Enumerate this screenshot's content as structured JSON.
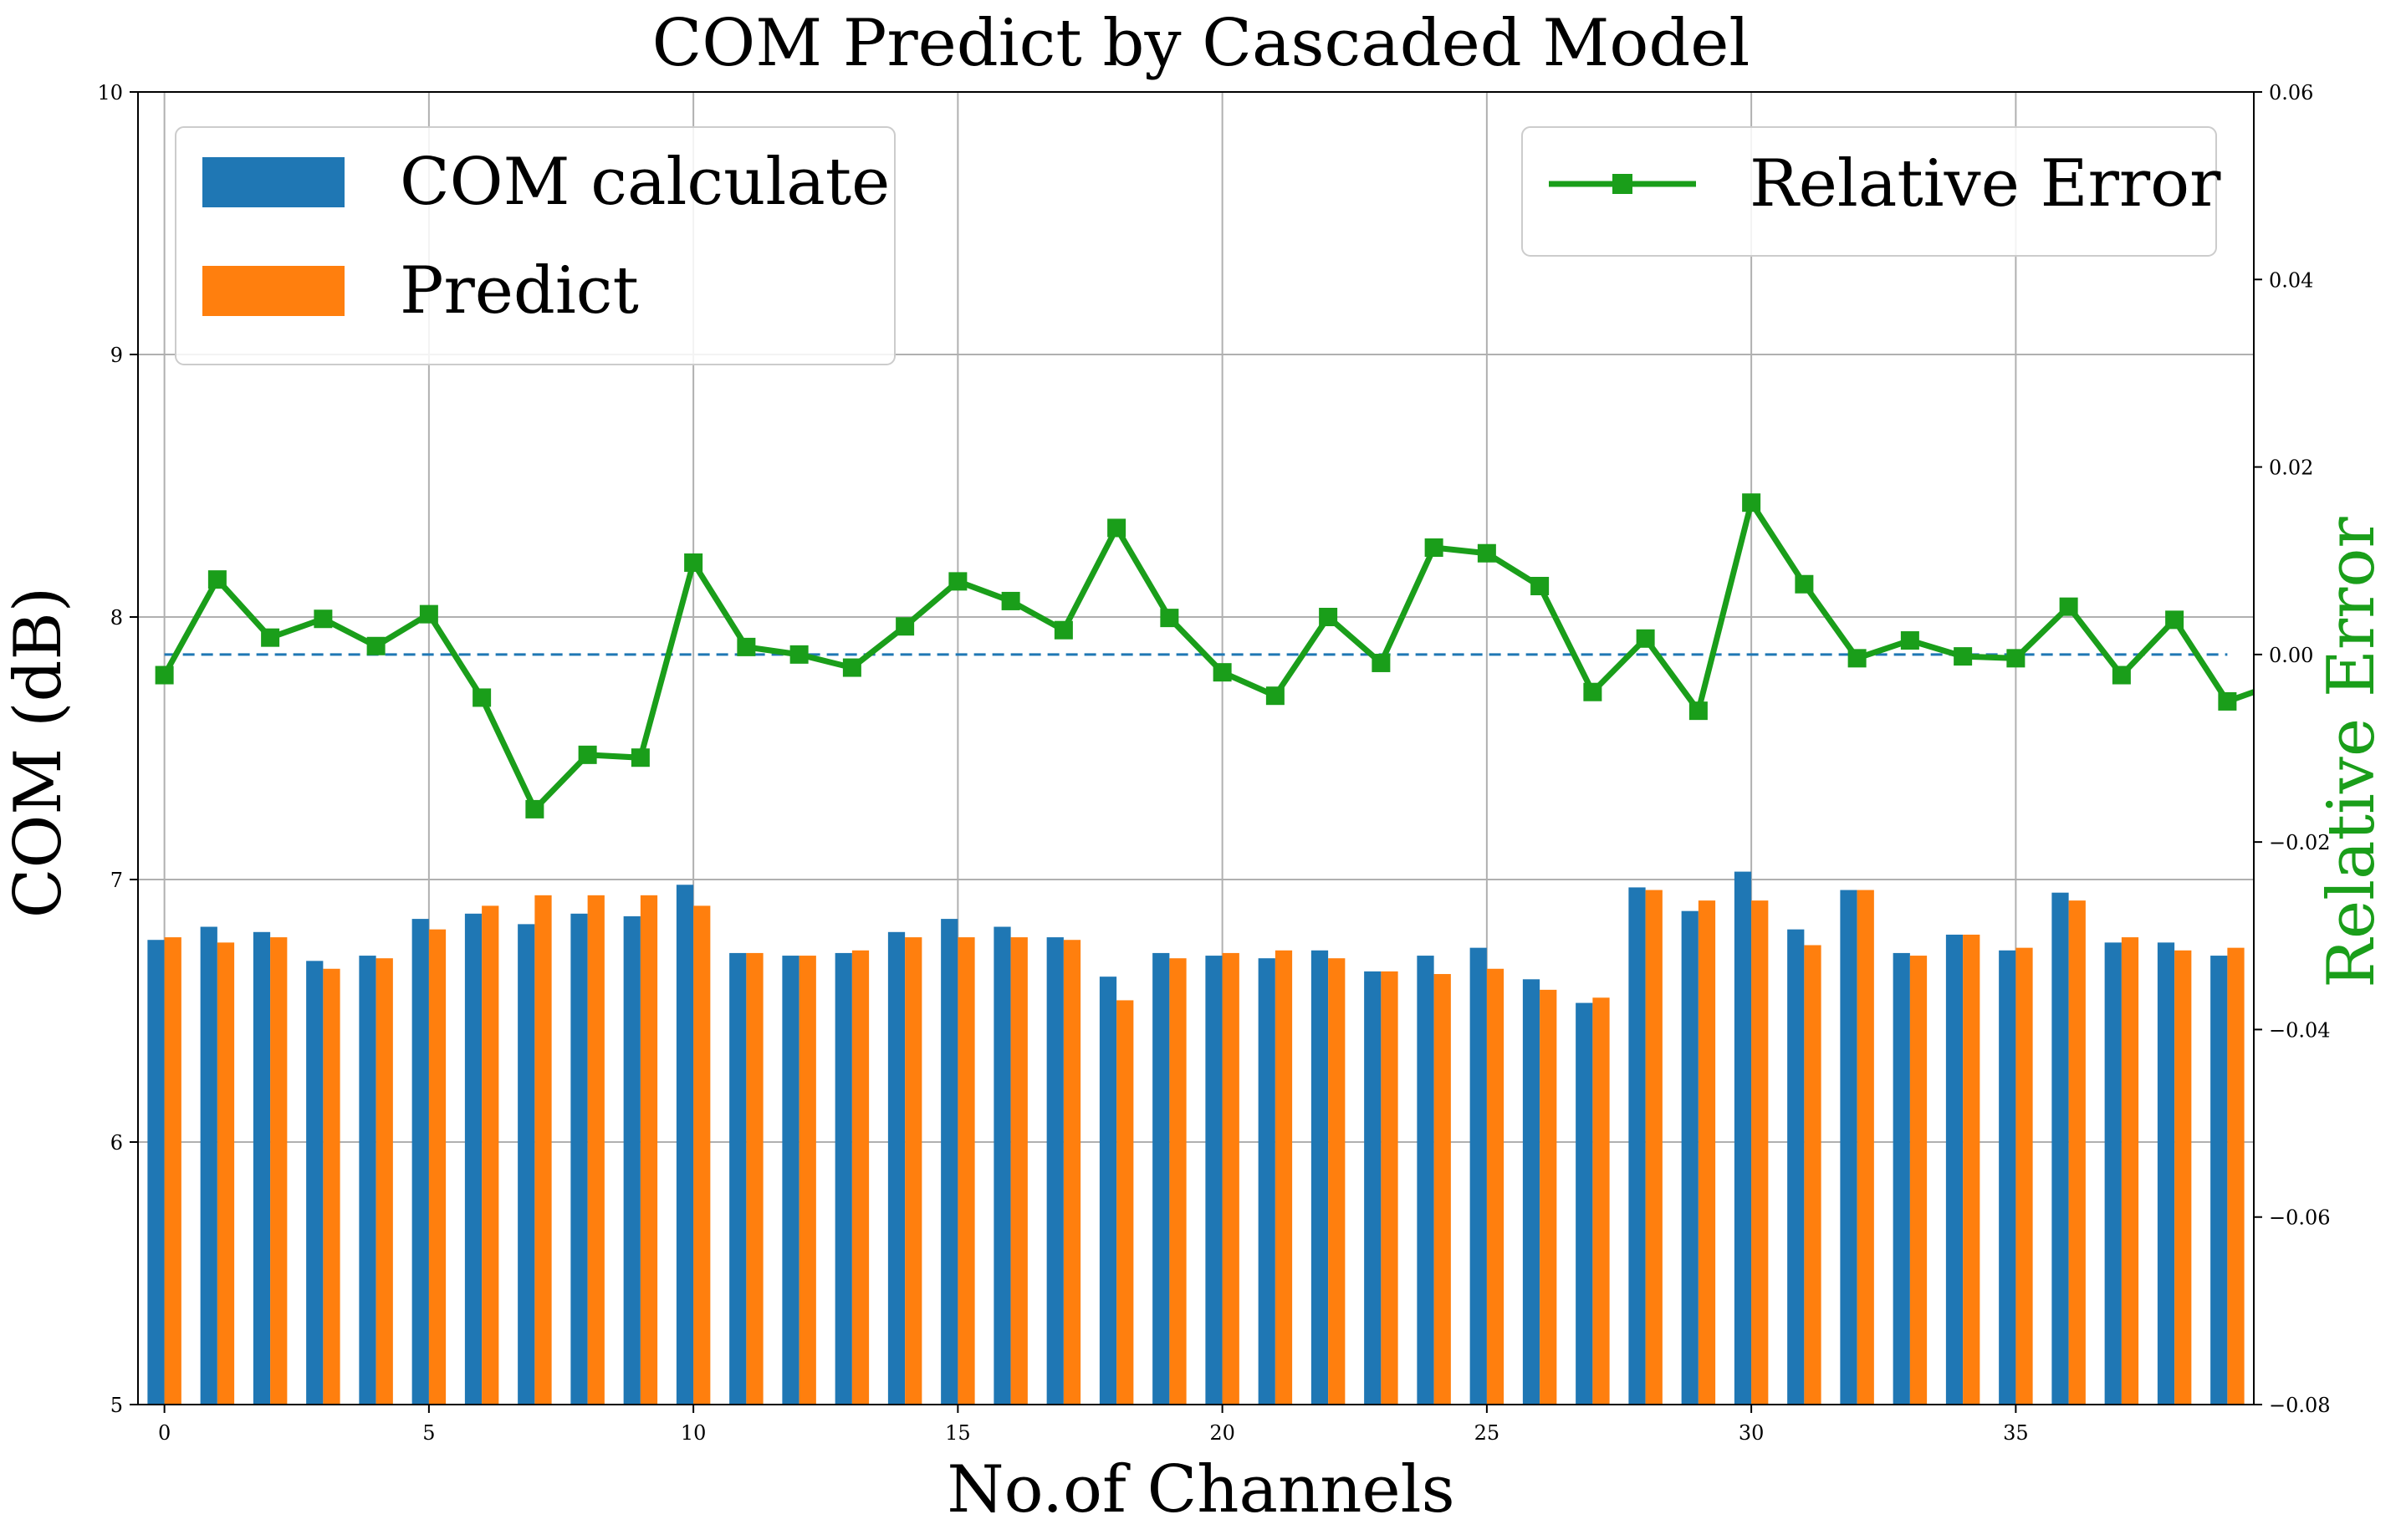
{
  "chart_data": {
    "type": "bar",
    "title": "COM Predict by Cascaded Model",
    "xlabel": "No.of Channels",
    "ylabel": "COM (dB)",
    "ylabel_right": "Relative Error",
    "x": [
      0,
      1,
      2,
      3,
      4,
      5,
      6,
      7,
      8,
      9,
      10,
      11,
      12,
      13,
      14,
      15,
      16,
      17,
      18,
      19,
      20,
      21,
      22,
      23,
      24,
      25,
      26,
      27,
      28,
      29,
      30,
      31,
      32,
      33,
      34,
      35,
      36,
      37,
      38,
      39
    ],
    "xlim": [
      -0.5,
      39.5
    ],
    "ylim": [
      5,
      10
    ],
    "ylim_right": [
      -0.08,
      0.06
    ],
    "xticks": [
      0,
      5,
      10,
      15,
      20,
      25,
      30,
      35
    ],
    "xtick_labels": [
      "0",
      "5",
      "10",
      "15",
      "20",
      "25",
      "30",
      "35"
    ],
    "yticks": [
      5,
      6,
      7,
      8,
      9,
      10
    ],
    "ytick_labels": [
      "5",
      "6",
      "7",
      "8",
      "9",
      "10"
    ],
    "yticks_right": [
      -0.08,
      -0.06,
      -0.04,
      -0.02,
      0.0,
      0.02,
      0.04,
      0.06
    ],
    "ytick_labels_right": [
      "−0.08",
      "−0.06",
      "−0.04",
      "−0.02",
      "0.00",
      "0.02",
      "0.04",
      "0.06"
    ],
    "grid": true,
    "series": [
      {
        "name": "COM calculate",
        "type": "bar",
        "axis": "left",
        "color": "#1f77b4",
        "values": [
          6.77,
          6.82,
          6.8,
          6.69,
          6.71,
          6.85,
          6.87,
          6.83,
          6.87,
          6.86,
          6.98,
          6.72,
          6.71,
          6.72,
          6.8,
          6.85,
          6.82,
          6.78,
          6.63,
          6.72,
          6.71,
          6.7,
          6.73,
          6.65,
          6.71,
          6.74,
          6.62,
          6.53,
          6.97,
          6.88,
          7.03,
          6.81,
          6.96,
          6.72,
          6.79,
          6.73,
          6.95,
          6.76,
          6.76,
          6.71
        ]
      },
      {
        "name": "Predict",
        "type": "bar",
        "axis": "left",
        "color": "#ff7f0e",
        "values": [
          6.78,
          6.76,
          6.78,
          6.66,
          6.7,
          6.81,
          6.9,
          6.94,
          6.94,
          6.94,
          6.9,
          6.72,
          6.71,
          6.73,
          6.78,
          6.78,
          6.78,
          6.77,
          6.54,
          6.7,
          6.72,
          6.73,
          6.7,
          6.65,
          6.64,
          6.66,
          6.58,
          6.55,
          6.96,
          6.92,
          6.92,
          6.75,
          6.96,
          6.71,
          6.79,
          6.74,
          6.92,
          6.78,
          6.73,
          6.74
        ]
      },
      {
        "name": "Relative Error",
        "type": "line",
        "axis": "right",
        "color": "#1a9e1a",
        "marker": "square",
        "values": [
          -0.0022,
          0.008,
          0.0018,
          0.0038,
          0.0009,
          0.0043,
          -0.0046,
          -0.0165,
          -0.0107,
          -0.011,
          0.0098,
          0.0008,
          0.0,
          -0.0014,
          0.003,
          0.0078,
          0.0057,
          0.0026,
          0.0135,
          0.0039,
          -0.0019,
          -0.0044,
          0.004,
          -0.0009,
          0.0114,
          0.0108,
          0.0073,
          -0.004,
          0.0017,
          -0.006,
          0.0162,
          0.0075,
          -0.0004,
          0.0015,
          -0.0002,
          -0.0004,
          0.0051,
          -0.0022,
          0.0037,
          -0.005
        ],
        "tail_value": -0.004
      }
    ],
    "reference_line": {
      "axis": "right",
      "value": 0.0,
      "style": "dashed",
      "color": "#1f77b4"
    },
    "legends": [
      {
        "position": "top-left",
        "entries": [
          "COM calculate",
          "Predict"
        ]
      },
      {
        "position": "top-right",
        "entries": [
          "Relative Error"
        ]
      }
    ]
  }
}
